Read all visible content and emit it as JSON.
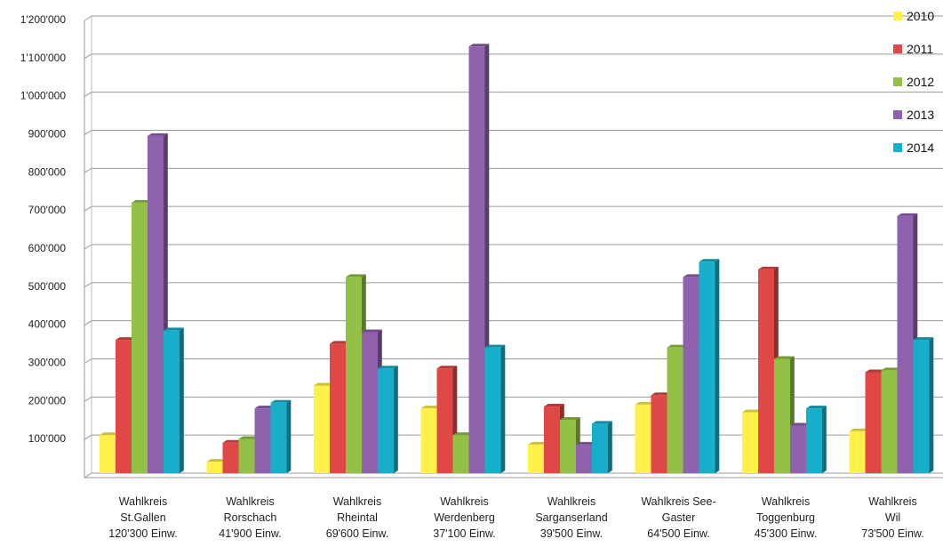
{
  "chart_data": {
    "type": "bar",
    "title": "",
    "xlabel": "",
    "ylabel": "",
    "ylim": [
      0,
      1200000
    ],
    "yticks": [
      100000,
      200000,
      300000,
      400000,
      500000,
      600000,
      700000,
      800000,
      900000,
      1000000,
      1100000,
      1200000
    ],
    "ytick_labels": [
      "100'000",
      "200'000",
      "300'000",
      "400'000",
      "500'000",
      "600'000",
      "700'000",
      "800'000",
      "900'000",
      "1'000'000",
      "1'100'000",
      "1'200'000"
    ],
    "grid": true,
    "legend_position": "top-right",
    "categories": [
      [
        "Wahlkreis",
        "St.Gallen",
        "120'300 Einw."
      ],
      [
        "Wahlkreis",
        "Rorschach",
        "41'900 Einw."
      ],
      [
        "Wahlkreis",
        "Rheintal",
        "69'600 Einw."
      ],
      [
        "Wahlkreis",
        "Werdenberg",
        "37'100 Einw."
      ],
      [
        "Wahlkreis",
        "Sarganserland",
        "39'500 Einw."
      ],
      [
        "Wahlkreis See-",
        "Gaster",
        "64'500 Einw."
      ],
      [
        "Wahlkreis",
        "Toggenburg",
        "45'300 Einw."
      ],
      [
        "Wahlkreis",
        "Wil",
        "73'500 Einw."
      ]
    ],
    "series": [
      {
        "name": "2010",
        "color": "#FFF04A",
        "values": [
          100000,
          30000,
          230000,
          170000,
          75000,
          180000,
          160000,
          110000
        ]
      },
      {
        "name": "2011",
        "color": "#E04848",
        "values": [
          350000,
          80000,
          340000,
          275000,
          175000,
          205000,
          535000,
          265000
        ]
      },
      {
        "name": "2012",
        "color": "#93C046",
        "values": [
          710000,
          90000,
          515000,
          100000,
          140000,
          330000,
          300000,
          270000
        ]
      },
      {
        "name": "2013",
        "color": "#8F62AE",
        "values": [
          885000,
          170000,
          370000,
          1120000,
          75000,
          515000,
          125000,
          675000
        ]
      },
      {
        "name": "2014",
        "color": "#16AEC8",
        "values": [
          375000,
          185000,
          275000,
          330000,
          130000,
          555000,
          170000,
          350000
        ]
      }
    ]
  }
}
